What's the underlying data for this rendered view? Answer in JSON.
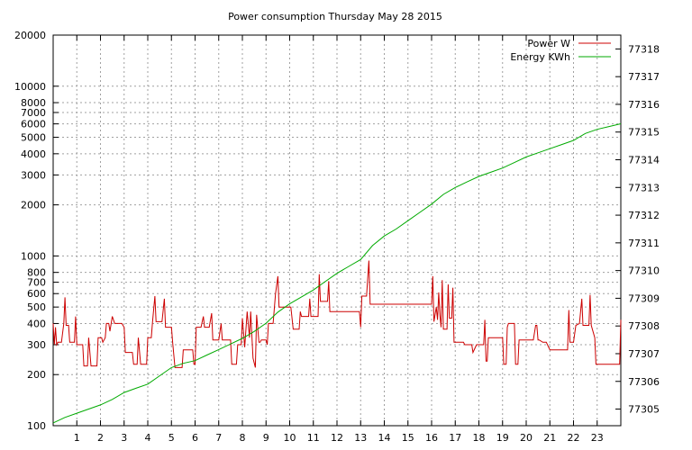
{
  "chart_data": {
    "type": "line",
    "title": "Power consumption Thursday May 28 2015",
    "xlabel": "",
    "ylabel": "",
    "grid": true,
    "legend_position": "top-right",
    "xlim": [
      0,
      24
    ],
    "x_ticks": [
      1,
      2,
      3,
      4,
      5,
      6,
      7,
      8,
      9,
      10,
      11,
      12,
      13,
      14,
      15,
      16,
      17,
      18,
      19,
      20,
      21,
      22,
      23
    ],
    "y_left": {
      "scale": "log",
      "range": [
        100,
        20000
      ],
      "tick_values": [
        100,
        200,
        300,
        400,
        500,
        600,
        700,
        800,
        1000,
        2000,
        3000,
        4000,
        5000,
        6000,
        7000,
        8000,
        10000,
        20000
      ]
    },
    "y_right": {
      "scale": "linear",
      "range": [
        77304.4,
        77318.5
      ],
      "tick_values": [
        77305,
        77306,
        77307,
        77308,
        77309,
        77310,
        77311,
        77312,
        77313,
        77314,
        77315,
        77316,
        77317,
        77318
      ]
    },
    "series": [
      {
        "name": "Power W",
        "axis": "left",
        "color": "#cc0000",
        "points": [
          [
            0,
            400
          ],
          [
            0.05,
            300
          ],
          [
            0.1,
            380
          ],
          [
            0.15,
            300
          ],
          [
            0.2,
            310
          ],
          [
            0.35,
            310
          ],
          [
            0.45,
            400
          ],
          [
            0.5,
            570
          ],
          [
            0.55,
            390
          ],
          [
            0.65,
            390
          ],
          [
            0.7,
            310
          ],
          [
            0.9,
            310
          ],
          [
            0.95,
            440
          ],
          [
            1.0,
            300
          ],
          [
            1.25,
            300
          ],
          [
            1.3,
            225
          ],
          [
            1.45,
            225
          ],
          [
            1.5,
            330
          ],
          [
            1.6,
            225
          ],
          [
            1.85,
            225
          ],
          [
            1.9,
            330
          ],
          [
            2.05,
            330
          ],
          [
            2.1,
            310
          ],
          [
            2.2,
            330
          ],
          [
            2.25,
            400
          ],
          [
            2.35,
            400
          ],
          [
            2.4,
            360
          ],
          [
            2.5,
            440
          ],
          [
            2.6,
            400
          ],
          [
            2.9,
            400
          ],
          [
            3.0,
            380
          ],
          [
            3.05,
            270
          ],
          [
            3.35,
            270
          ],
          [
            3.4,
            230
          ],
          [
            3.55,
            230
          ],
          [
            3.6,
            330
          ],
          [
            3.7,
            230
          ],
          [
            3.95,
            230
          ],
          [
            4.0,
            330
          ],
          [
            4.15,
            330
          ],
          [
            4.2,
            410
          ],
          [
            4.3,
            580
          ],
          [
            4.35,
            410
          ],
          [
            4.6,
            410
          ],
          [
            4.7,
            560
          ],
          [
            4.75,
            380
          ],
          [
            5.0,
            380
          ],
          [
            5.05,
            310
          ],
          [
            5.15,
            220
          ],
          [
            5.45,
            220
          ],
          [
            5.5,
            280
          ],
          [
            5.9,
            280
          ],
          [
            5.95,
            230
          ],
          [
            6.0,
            230
          ],
          [
            6.05,
            380
          ],
          [
            6.25,
            380
          ],
          [
            6.35,
            440
          ],
          [
            6.4,
            380
          ],
          [
            6.6,
            380
          ],
          [
            6.7,
            460
          ],
          [
            6.75,
            320
          ],
          [
            7.0,
            320
          ],
          [
            7.1,
            400
          ],
          [
            7.15,
            320
          ],
          [
            7.5,
            320
          ],
          [
            7.55,
            230
          ],
          [
            7.75,
            230
          ],
          [
            7.8,
            300
          ],
          [
            7.95,
            300
          ],
          [
            8.0,
            430
          ],
          [
            8.1,
            290
          ],
          [
            8.2,
            470
          ],
          [
            8.3,
            330
          ],
          [
            8.35,
            470
          ],
          [
            8.45,
            250
          ],
          [
            8.55,
            220
          ],
          [
            8.6,
            450
          ],
          [
            8.7,
            310
          ],
          [
            8.75,
            310
          ],
          [
            8.8,
            320
          ],
          [
            9.0,
            320
          ],
          [
            9.05,
            300
          ],
          [
            9.1,
            400
          ],
          [
            9.3,
            400
          ],
          [
            9.4,
            600
          ],
          [
            9.5,
            760
          ],
          [
            9.55,
            500
          ],
          [
            10.05,
            500
          ],
          [
            10.15,
            370
          ],
          [
            10.4,
            370
          ],
          [
            10.45,
            470
          ],
          [
            10.5,
            440
          ],
          [
            10.8,
            440
          ],
          [
            10.85,
            560
          ],
          [
            10.9,
            440
          ],
          [
            11.2,
            440
          ],
          [
            11.25,
            780
          ],
          [
            11.3,
            540
          ],
          [
            11.6,
            540
          ],
          [
            11.65,
            710
          ],
          [
            11.7,
            470
          ],
          [
            12.0,
            470
          ],
          [
            12.5,
            470
          ],
          [
            12.95,
            470
          ],
          [
            13.0,
            380
          ],
          [
            13.05,
            580
          ],
          [
            13.25,
            580
          ],
          [
            13.35,
            940
          ],
          [
            13.4,
            520
          ],
          [
            13.8,
            520
          ],
          [
            14.5,
            520
          ],
          [
            15.5,
            520
          ],
          [
            16.0,
            520
          ],
          [
            16.05,
            760
          ],
          [
            16.1,
            410
          ],
          [
            16.2,
            500
          ],
          [
            16.25,
            420
          ],
          [
            16.3,
            610
          ],
          [
            16.35,
            450
          ],
          [
            16.4,
            380
          ],
          [
            16.45,
            720
          ],
          [
            16.5,
            370
          ],
          [
            16.65,
            370
          ],
          [
            16.7,
            680
          ],
          [
            16.75,
            430
          ],
          [
            16.85,
            430
          ],
          [
            16.9,
            650
          ],
          [
            16.95,
            310
          ],
          [
            17.35,
            310
          ],
          [
            17.4,
            300
          ],
          [
            17.7,
            300
          ],
          [
            17.75,
            270
          ],
          [
            17.9,
            300
          ],
          [
            18.0,
            300
          ],
          [
            18.2,
            300
          ],
          [
            18.25,
            420
          ],
          [
            18.3,
            240
          ],
          [
            18.35,
            240
          ],
          [
            18.4,
            330
          ],
          [
            19.0,
            330
          ],
          [
            19.05,
            230
          ],
          [
            19.15,
            230
          ],
          [
            19.2,
            380
          ],
          [
            19.25,
            400
          ],
          [
            19.5,
            400
          ],
          [
            19.55,
            230
          ],
          [
            19.65,
            230
          ],
          [
            19.7,
            320
          ],
          [
            20.3,
            320
          ],
          [
            20.4,
            390
          ],
          [
            20.45,
            390
          ],
          [
            20.5,
            320
          ],
          [
            20.55,
            320
          ],
          [
            20.7,
            310
          ],
          [
            20.85,
            310
          ],
          [
            21.0,
            280
          ],
          [
            21.75,
            280
          ],
          [
            21.8,
            480
          ],
          [
            21.85,
            310
          ],
          [
            22.0,
            310
          ],
          [
            22.1,
            390
          ],
          [
            22.25,
            400
          ],
          [
            22.35,
            560
          ],
          [
            22.4,
            390
          ],
          [
            22.55,
            390
          ],
          [
            22.65,
            390
          ],
          [
            22.7,
            590
          ],
          [
            22.75,
            390
          ],
          [
            22.9,
            330
          ],
          [
            22.95,
            230
          ],
          [
            23.95,
            230
          ],
          [
            24.0,
            420
          ]
        ]
      },
      {
        "name": "Energy KWh",
        "axis": "right",
        "color": "#00aa00",
        "points": [
          [
            0,
            77304.5
          ],
          [
            0.5,
            77304.7
          ],
          [
            1.0,
            77304.85
          ],
          [
            1.5,
            77305.0
          ],
          [
            2.0,
            77305.15
          ],
          [
            2.5,
            77305.35
          ],
          [
            3.0,
            77305.6
          ],
          [
            3.5,
            77305.75
          ],
          [
            4.0,
            77305.9
          ],
          [
            4.5,
            77306.2
          ],
          [
            5.0,
            77306.5
          ],
          [
            5.5,
            77306.65
          ],
          [
            6.0,
            77306.75
          ],
          [
            6.5,
            77306.95
          ],
          [
            7.0,
            77307.15
          ],
          [
            7.5,
            77307.35
          ],
          [
            8.0,
            77307.55
          ],
          [
            8.5,
            77307.8
          ],
          [
            9.0,
            77308.1
          ],
          [
            9.5,
            77308.5
          ],
          [
            10.0,
            77308.8
          ],
          [
            10.5,
            77309.05
          ],
          [
            11.0,
            77309.3
          ],
          [
            11.5,
            77309.6
          ],
          [
            12.0,
            77309.9
          ],
          [
            12.5,
            77310.15
          ],
          [
            13.0,
            77310.4
          ],
          [
            13.5,
            77310.9
          ],
          [
            14.0,
            77311.25
          ],
          [
            14.5,
            77311.5
          ],
          [
            15.0,
            77311.8
          ],
          [
            15.5,
            77312.1
          ],
          [
            16.0,
            77312.4
          ],
          [
            16.5,
            77312.75
          ],
          [
            17.0,
            77313.0
          ],
          [
            17.5,
            77313.2
          ],
          [
            18.0,
            77313.4
          ],
          [
            18.5,
            77313.55
          ],
          [
            19.0,
            77313.7
          ],
          [
            19.5,
            77313.9
          ],
          [
            20.0,
            77314.1
          ],
          [
            20.5,
            77314.25
          ],
          [
            21.0,
            77314.4
          ],
          [
            21.5,
            77314.55
          ],
          [
            22.0,
            77314.7
          ],
          [
            22.5,
            77314.95
          ],
          [
            23.0,
            77315.1
          ],
          [
            23.5,
            77315.2
          ],
          [
            24.0,
            77315.3
          ]
        ]
      }
    ]
  }
}
